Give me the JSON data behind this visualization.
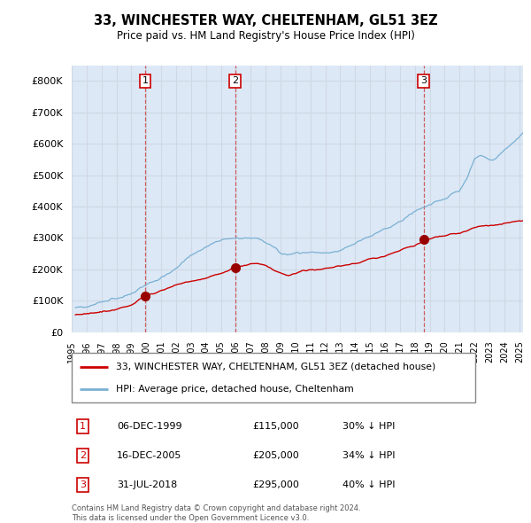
{
  "title": "33, WINCHESTER WAY, CHELTENHAM, GL51 3EZ",
  "subtitle": "Price paid vs. HM Land Registry's House Price Index (HPI)",
  "legend_label_red": "33, WINCHESTER WAY, CHELTENHAM, GL51 3EZ (detached house)",
  "legend_label_blue": "HPI: Average price, detached house, Cheltenham",
  "footer_line1": "Contains HM Land Registry data © Crown copyright and database right 2024.",
  "footer_line2": "This data is licensed under the Open Government Licence v3.0.",
  "transactions": [
    {
      "num": 1,
      "date": "06-DEC-1999",
      "price": "£115,000",
      "pct": "30% ↓ HPI",
      "year": 1999.92
    },
    {
      "num": 2,
      "date": "16-DEC-2005",
      "price": "£205,000",
      "pct": "34% ↓ HPI",
      "year": 2005.96
    },
    {
      "num": 3,
      "date": "31-JUL-2018",
      "price": "£295,000",
      "pct": "40% ↓ HPI",
      "year": 2018.58
    }
  ],
  "trans_prices": [
    115000,
    205000,
    295000
  ],
  "ylim": [
    0,
    850000
  ],
  "yticks": [
    0,
    100000,
    200000,
    300000,
    400000,
    500000,
    600000,
    700000,
    800000
  ],
  "xlim_start": 1995.25,
  "xlim_end": 2025.25,
  "xticks": [
    1995,
    1996,
    1997,
    1998,
    1999,
    2000,
    2001,
    2002,
    2003,
    2004,
    2005,
    2006,
    2007,
    2008,
    2009,
    2010,
    2011,
    2012,
    2013,
    2014,
    2015,
    2016,
    2017,
    2018,
    2019,
    2020,
    2021,
    2022,
    2023,
    2024,
    2025
  ],
  "red_color": "#cc0000",
  "blue_color": "#7ab0d4",
  "grid_color": "#d0d8e4",
  "bg_color": "#dce8f5",
  "transaction_marker_color": "#990000",
  "dashed_line_color": "#cc4444",
  "box_color": "#cc0000",
  "label_number_color": "#000000"
}
